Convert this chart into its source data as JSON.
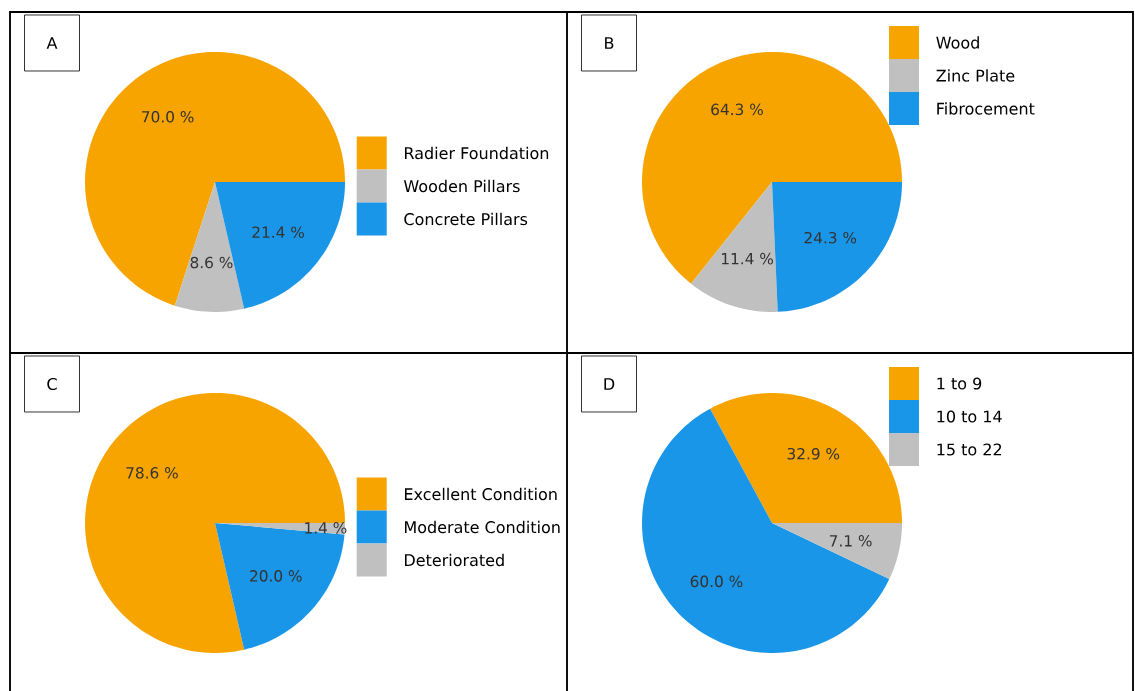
{
  "chart_data": [
    {
      "type": "pie",
      "title": "A",
      "categories": [
        "Radier Foundation",
        "Wooden Pillars",
        "Concrete Pillars"
      ],
      "values": [
        70.0,
        8.6,
        21.4
      ],
      "value_labels": [
        "70.0 %",
        "8.6 %",
        "21.4 %"
      ],
      "colors": [
        "#f7a400",
        "#c0c0c0",
        "#1a96e8"
      ],
      "legend": "right"
    },
    {
      "type": "pie",
      "title": "B",
      "categories": [
        "Wood",
        "Zinc Plate",
        "Fibrocement"
      ],
      "values": [
        64.3,
        11.4,
        24.3
      ],
      "value_labels": [
        "64.3 %",
        "11.4 %",
        "24.3 %"
      ],
      "colors": [
        "#f7a400",
        "#c0c0c0",
        "#1a96e8"
      ],
      "legend": "top right"
    },
    {
      "type": "pie",
      "title": "C",
      "categories": [
        "Excellent Condition",
        "Moderate Condition",
        "Deteriorated"
      ],
      "values": [
        78.6,
        20.0,
        1.4
      ],
      "value_labels": [
        "78.6 %",
        "20.0 %",
        "1.4 %"
      ],
      "colors": [
        "#f7a400",
        "#1a96e8",
        "#c0c0c0"
      ],
      "legend": "right"
    },
    {
      "type": "pie",
      "title": "D",
      "categories": [
        "1 to 9",
        "10 to 14",
        "15 to 22"
      ],
      "values": [
        32.9,
        60.0,
        7.1
      ],
      "value_labels": [
        "32.9 %",
        "60.0 %",
        "7.1 %"
      ],
      "colors": [
        "#f7a400",
        "#1a96e8",
        "#c0c0c0"
      ],
      "legend": "top right"
    }
  ]
}
